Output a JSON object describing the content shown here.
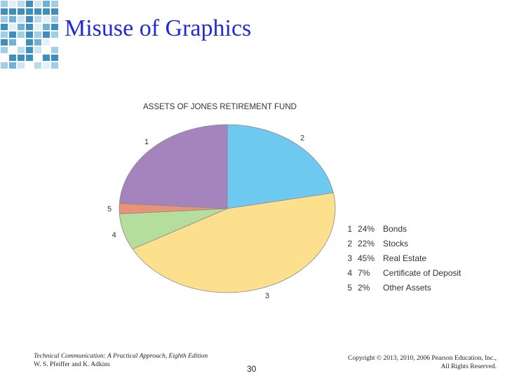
{
  "slide": {
    "title": "Misuse of Graphics",
    "page_number": "30"
  },
  "footer": {
    "book_title": "Technical Communication: A Practical Approach, Eighth Edition",
    "authors": "W. S. Pfeiffer and K. Adkins",
    "copyright_line1": "Copyright © 2013, 2010, 2006 Pearson Education, Inc.,",
    "copyright_line2": "All Rights Reserved."
  },
  "chart_data": {
    "type": "pie",
    "title": "ASSETS OF JONES RETIREMENT FUND",
    "slices": [
      {
        "label": "1",
        "pct_label": "24%",
        "name": "Bonds",
        "value": 24,
        "color": "#a583bd"
      },
      {
        "label": "2",
        "pct_label": "22%",
        "name": "Stocks",
        "value": 22,
        "color": "#6ec9f0"
      },
      {
        "label": "3",
        "pct_label": "45%",
        "name": "Real Estate",
        "value": 45,
        "color": "#fde08e"
      },
      {
        "label": "4",
        "pct_label": "7%",
        "name": "Certificate of Deposit",
        "value": 7,
        "color": "#b5dd9c"
      },
      {
        "label": "5",
        "pct_label": "2%",
        "name": "Other Assets",
        "value": 2,
        "color": "#e89278"
      }
    ],
    "legend_position": "right"
  }
}
